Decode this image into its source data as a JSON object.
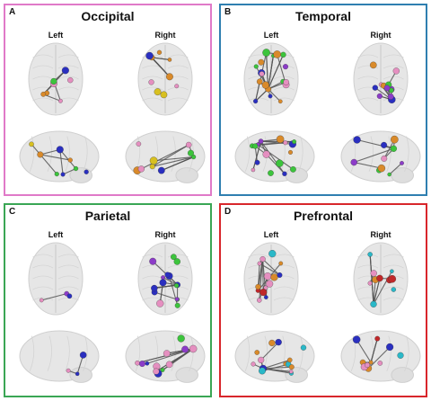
{
  "panels": [
    {
      "letter": "A",
      "title": "Occipital",
      "border_color": "#e07ac8",
      "left_label": "Left",
      "right_label": "Right"
    },
    {
      "letter": "B",
      "title": "Temporal",
      "border_color": "#2f7fb0",
      "left_label": "Left",
      "right_label": "Right"
    },
    {
      "letter": "C",
      "title": "Parietal",
      "border_color": "#3aa655",
      "left_label": "Left",
      "right_label": "Right"
    },
    {
      "letter": "D",
      "title": "Prefrontal",
      "border_color": "#d8262b",
      "left_label": "Left",
      "right_label": "Right"
    }
  ],
  "node_colors": {
    "orange": "#d98a2a",
    "pink": "#e58fc0",
    "blue": "#2a2fc0",
    "green": "#3cc43c",
    "red": "#c0282a",
    "cyan": "#2ab8c8",
    "yellow": "#d8c020",
    "purple": "#8c3cc8"
  }
}
